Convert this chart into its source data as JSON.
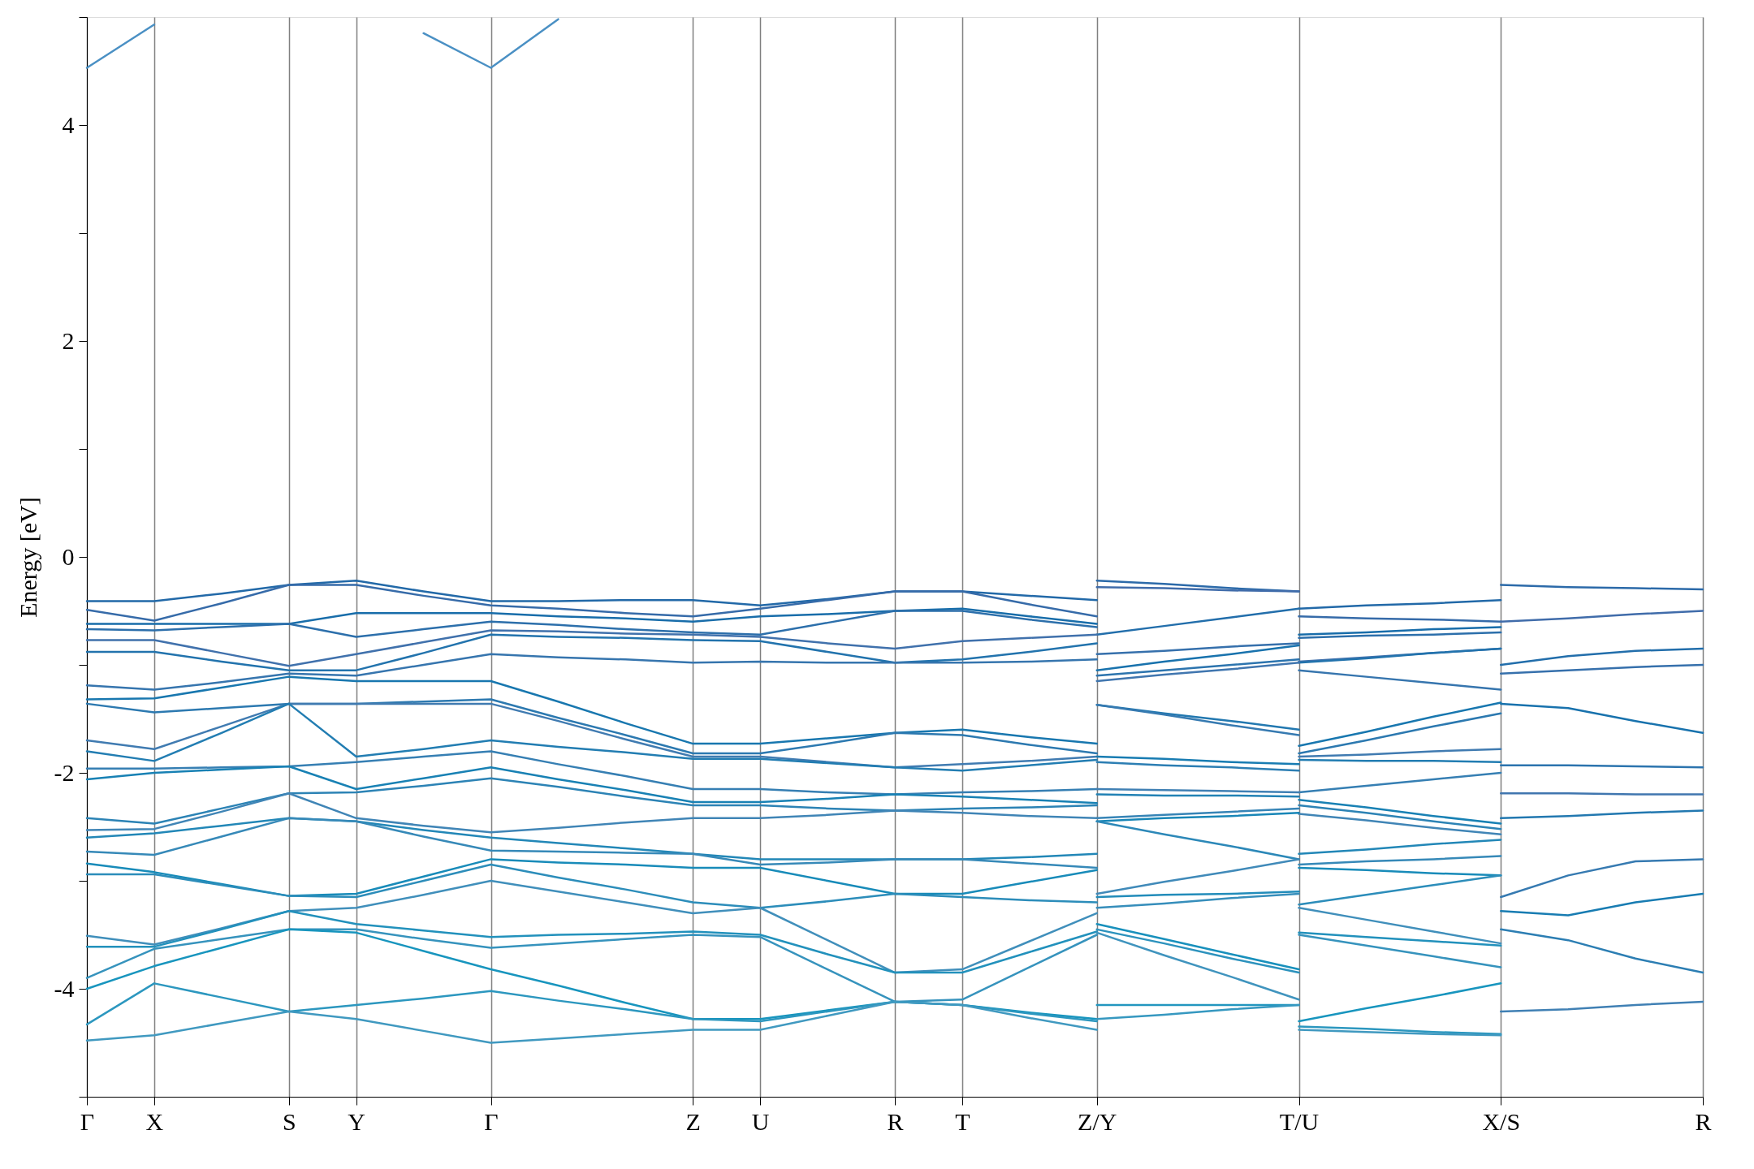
{
  "chart_data": {
    "type": "line",
    "ylabel": "Energy [eV]",
    "categories": [
      "Γ",
      "X",
      null,
      "S",
      "Y",
      null,
      "Γ",
      null,
      null,
      "Z",
      "U",
      null,
      "R",
      "T",
      null,
      "Z/Y",
      null,
      null,
      "T/U",
      null,
      null,
      "X/S",
      null,
      null,
      "R"
    ],
    "ylim": [
      -5,
      5
    ],
    "yticks": [
      {
        "value": -5,
        "label": null
      },
      -4,
      {
        "value": -3,
        "label": null
      },
      -2,
      {
        "value": -1,
        "label": null
      },
      0,
      {
        "value": 1,
        "label": null
      },
      2,
      {
        "value": 3,
        "label": null
      },
      4,
      {
        "value": 5,
        "label": null
      }
    ],
    "grid": "x",
    "legend": false,
    "line_style": "solid",
    "marker": "none",
    "series": [
      {
        "color": "#4a90c4",
        "values": [
          4.53,
          4.93,
          null,
          null,
          null,
          4.85,
          4.53,
          4.98,
          null,
          null,
          null,
          null,
          null,
          null,
          null,
          null,
          null,
          null,
          null,
          null,
          null,
          null,
          null,
          null,
          null
        ]
      },
      {
        "color": "#2269a8",
        "values": [
          -0.41,
          -0.41,
          -0.34,
          -0.26,
          -0.22,
          -0.32,
          -0.41,
          -0.41,
          -0.4,
          -0.4,
          -0.45,
          -0.39,
          -0.32,
          -0.32,
          -0.36,
          -0.4,
          null,
          null,
          -0.48,
          -0.45,
          -0.43,
          -0.4,
          null,
          null,
          null
        ]
      },
      {
        "color": "#2c6aa9",
        "values": [
          null,
          null,
          null,
          null,
          null,
          null,
          null,
          null,
          null,
          null,
          null,
          null,
          null,
          null,
          null,
          -0.22,
          -0.25,
          -0.29,
          -0.32,
          null,
          null,
          -0.26,
          -0.28,
          -0.29,
          -0.3
        ]
      },
      {
        "color": "#366ba9",
        "values": [
          -0.49,
          -0.59,
          -0.43,
          -0.26,
          -0.26,
          -0.36,
          -0.45,
          -0.48,
          -0.52,
          -0.55,
          -0.48,
          -0.4,
          -0.32,
          -0.32,
          -0.44,
          -0.55,
          null,
          null,
          -0.55,
          -0.57,
          -0.58,
          -0.6,
          null,
          null,
          null
        ]
      },
      {
        "color": "#406caa",
        "values": [
          null,
          null,
          null,
          null,
          null,
          null,
          null,
          null,
          null,
          null,
          null,
          null,
          null,
          null,
          null,
          -0.28,
          -0.29,
          -0.31,
          -0.32,
          null,
          null,
          -0.6,
          -0.57,
          -0.53,
          -0.5
        ]
      },
      {
        "color": "#186daa",
        "values": [
          -0.62,
          -0.62,
          -0.62,
          -0.62,
          -0.52,
          -0.52,
          -0.52,
          -0.55,
          -0.57,
          -0.6,
          -0.55,
          -0.53,
          -0.5,
          -0.48,
          -0.55,
          -0.62,
          null,
          null,
          -0.72,
          -0.7,
          -0.67,
          -0.65,
          null,
          null,
          null
        ]
      },
      {
        "color": "#226eab",
        "values": [
          null,
          null,
          null,
          null,
          null,
          null,
          null,
          null,
          null,
          null,
          null,
          null,
          null,
          null,
          null,
          -0.72,
          -0.64,
          -0.56,
          -0.48,
          null,
          null,
          -1.0,
          -0.92,
          -0.87,
          -0.85
        ]
      },
      {
        "color": "#2c6fab",
        "values": [
          -0.67,
          -0.68,
          -0.65,
          -0.62,
          -0.74,
          -0.67,
          -0.6,
          -0.63,
          -0.67,
          -0.7,
          -0.72,
          -0.61,
          -0.5,
          -0.5,
          -0.58,
          -0.65,
          null,
          null,
          -0.75,
          -0.73,
          -0.72,
          -0.7,
          null,
          null,
          null
        ]
      },
      {
        "color": "#3670ac",
        "values": [
          null,
          null,
          null,
          null,
          null,
          null,
          null,
          null,
          null,
          null,
          null,
          null,
          null,
          null,
          null,
          -0.9,
          -0.87,
          -0.83,
          -0.8,
          null,
          null,
          -1.08,
          -1.05,
          -1.02,
          -1.0
        ]
      },
      {
        "color": "#4071ac",
        "values": [
          -0.77,
          -0.77,
          -0.89,
          -1.01,
          -0.9,
          -0.79,
          -0.68,
          -0.69,
          -0.71,
          -0.72,
          -0.74,
          -0.8,
          -0.85,
          -0.78,
          -0.75,
          -0.72,
          null,
          null,
          -0.97,
          -0.93,
          -0.89,
          -0.85,
          null,
          null,
          null
        ]
      },
      {
        "color": "#1872ad",
        "values": [
          null,
          null,
          null,
          null,
          null,
          null,
          null,
          null,
          null,
          null,
          null,
          null,
          null,
          null,
          null,
          -1.05,
          -0.97,
          -0.9,
          -0.82,
          null,
          null,
          -1.36,
          -1.4,
          -1.52,
          -1.63
        ]
      },
      {
        "color": "#2273ad",
        "values": [
          -0.88,
          -0.88,
          -0.97,
          -1.05,
          -1.05,
          -0.89,
          -0.72,
          -0.74,
          -0.75,
          -0.77,
          -0.78,
          -0.88,
          -0.98,
          -0.95,
          -0.88,
          -0.8,
          null,
          null,
          -0.98,
          -0.94,
          -0.89,
          -0.85,
          null,
          null,
          null
        ]
      },
      {
        "color": "#2c74ae",
        "values": [
          null,
          null,
          null,
          null,
          null,
          null,
          null,
          null,
          null,
          null,
          null,
          null,
          null,
          null,
          null,
          -1.1,
          -1.05,
          -1.0,
          -0.95,
          null,
          null,
          -1.93,
          -1.93,
          -1.94,
          -1.95
        ]
      },
      {
        "color": "#3675ae",
        "values": [
          -1.19,
          -1.23,
          -1.16,
          -1.08,
          -1.1,
          -1.0,
          -0.9,
          -0.93,
          -0.95,
          -0.98,
          -0.97,
          -0.98,
          -0.98,
          -0.98,
          -0.97,
          -0.95,
          null,
          null,
          -1.05,
          -1.11,
          -1.17,
          -1.23,
          null,
          null,
          null
        ]
      },
      {
        "color": "#4076af",
        "values": [
          null,
          null,
          null,
          null,
          null,
          null,
          null,
          null,
          null,
          null,
          null,
          null,
          null,
          null,
          null,
          -1.15,
          -1.09,
          -1.04,
          -0.98,
          null,
          null,
          -2.19,
          -2.19,
          -2.2,
          -2.2
        ]
      },
      {
        "color": "#1877af",
        "values": [
          -1.32,
          -1.31,
          -1.21,
          -1.11,
          -1.15,
          -1.15,
          -1.15,
          -1.34,
          -1.54,
          -1.73,
          -1.73,
          -1.68,
          -1.63,
          -1.6,
          -1.67,
          -1.73,
          null,
          null,
          -1.75,
          -1.62,
          -1.48,
          -1.35,
          null,
          null,
          null
        ]
      },
      {
        "color": "#2278b0",
        "values": [
          null,
          null,
          null,
          null,
          null,
          null,
          null,
          null,
          null,
          null,
          null,
          null,
          null,
          null,
          null,
          -1.37,
          -1.45,
          -1.52,
          -1.6,
          null,
          null,
          -2.42,
          -2.4,
          -2.37,
          -2.35
        ]
      },
      {
        "color": "#2c79b0",
        "values": [
          -1.36,
          -1.44,
          -1.4,
          -1.36,
          -1.36,
          -1.34,
          -1.32,
          -1.49,
          -1.65,
          -1.82,
          -1.82,
          -1.73,
          -1.63,
          -1.65,
          -1.74,
          -1.82,
          null,
          null,
          -1.82,
          -1.7,
          -1.57,
          -1.45,
          null,
          null,
          null
        ]
      },
      {
        "color": "#367ab1",
        "values": [
          null,
          null,
          null,
          null,
          null,
          null,
          null,
          null,
          null,
          null,
          null,
          null,
          null,
          null,
          null,
          -1.37,
          -1.46,
          -1.56,
          -1.65,
          null,
          null,
          -3.15,
          -2.95,
          -2.82,
          -2.8
        ]
      },
      {
        "color": "#407bb1",
        "values": [
          -1.7,
          -1.78,
          -1.57,
          -1.36,
          -1.36,
          -1.36,
          -1.36,
          -1.52,
          -1.69,
          -1.85,
          -1.85,
          -1.9,
          -1.95,
          -1.92,
          -1.89,
          -1.85,
          null,
          null,
          -1.85,
          -1.83,
          -1.8,
          -1.78,
          null,
          null,
          null
        ]
      },
      {
        "color": "#187cb2",
        "values": [
          null,
          null,
          null,
          null,
          null,
          null,
          null,
          null,
          null,
          null,
          null,
          null,
          null,
          null,
          null,
          -1.85,
          -1.87,
          -1.9,
          -1.92,
          null,
          null,
          -3.28,
          -3.32,
          -3.2,
          -3.12
        ]
      },
      {
        "color": "#227db2",
        "values": [
          -1.8,
          -1.89,
          -1.63,
          -1.36,
          -1.85,
          -1.78,
          -1.7,
          -1.76,
          -1.81,
          -1.87,
          -1.87,
          -1.91,
          -1.95,
          -1.98,
          -1.93,
          -1.88,
          null,
          null,
          -1.88,
          -1.89,
          -1.89,
          -1.9,
          null,
          null,
          null
        ]
      },
      {
        "color": "#2c7eb3",
        "values": [
          null,
          null,
          null,
          null,
          null,
          null,
          null,
          null,
          null,
          null,
          null,
          null,
          null,
          null,
          null,
          -1.9,
          -1.93,
          -1.95,
          -1.98,
          null,
          null,
          -3.45,
          -3.55,
          -3.72,
          -3.85
        ]
      },
      {
        "color": "#367fb3",
        "values": [
          -1.96,
          -1.96,
          -1.95,
          -1.94,
          -1.9,
          -1.85,
          -1.8,
          -1.92,
          -2.03,
          -2.15,
          -2.15,
          -2.18,
          -2.2,
          -2.18,
          -2.17,
          -2.15,
          null,
          null,
          -2.18,
          -2.12,
          -2.06,
          -2.0,
          null,
          null,
          null
        ]
      },
      {
        "color": "#4080b4",
        "values": [
          null,
          null,
          null,
          null,
          null,
          null,
          null,
          null,
          null,
          null,
          null,
          null,
          null,
          null,
          null,
          -2.15,
          -2.16,
          -2.17,
          -2.18,
          null,
          null,
          -4.21,
          -4.19,
          -4.15,
          -4.12
        ]
      },
      {
        "color": "#1881b4",
        "values": [
          -2.06,
          -2.0,
          -1.97,
          -1.94,
          -2.15,
          -2.05,
          -1.95,
          -2.06,
          -2.16,
          -2.27,
          -2.27,
          -2.24,
          -2.2,
          -2.22,
          -2.25,
          -2.28,
          null,
          null,
          -2.25,
          -2.32,
          -2.4,
          -2.47,
          null,
          null,
          null
        ]
      },
      {
        "color": "#2282b5",
        "values": [
          null,
          null,
          null,
          null,
          null,
          null,
          null,
          null,
          null,
          null,
          null,
          null,
          null,
          null,
          null,
          -2.2,
          -2.21,
          -2.21,
          -2.22,
          null,
          null,
          null,
          null,
          null,
          null
        ]
      },
      {
        "color": "#2c83b5",
        "values": [
          -2.42,
          -2.47,
          -2.33,
          -2.19,
          -2.18,
          -2.12,
          -2.05,
          -2.13,
          -2.22,
          -2.3,
          -2.3,
          -2.33,
          -2.35,
          -2.33,
          -2.32,
          -2.3,
          null,
          null,
          -2.3,
          -2.37,
          -2.45,
          -2.52,
          null,
          null,
          null
        ]
      },
      {
        "color": "#3684b6",
        "values": [
          null,
          null,
          null,
          null,
          null,
          null,
          null,
          null,
          null,
          null,
          null,
          null,
          null,
          null,
          null,
          -2.42,
          -2.39,
          -2.36,
          -2.33,
          null,
          null,
          null,
          null,
          null,
          null
        ]
      },
      {
        "color": "#4085b6",
        "values": [
          -2.53,
          -2.52,
          -2.36,
          -2.19,
          -2.42,
          -2.49,
          -2.55,
          -2.51,
          -2.46,
          -2.42,
          -2.42,
          -2.39,
          -2.35,
          -2.37,
          -2.4,
          -2.42,
          null,
          null,
          -2.38,
          -2.44,
          -2.51,
          -2.57,
          null,
          null,
          null
        ]
      },
      {
        "color": "#1886b7",
        "values": [
          null,
          null,
          null,
          null,
          null,
          null,
          null,
          null,
          null,
          null,
          null,
          null,
          null,
          null,
          null,
          -2.45,
          -2.42,
          -2.4,
          -2.37,
          null,
          null,
          null,
          null,
          null,
          null
        ]
      },
      {
        "color": "#2287b7",
        "values": [
          -2.6,
          -2.56,
          -2.49,
          -2.42,
          -2.45,
          -2.53,
          -2.6,
          -2.65,
          -2.7,
          -2.75,
          -2.8,
          -2.8,
          -2.8,
          -2.8,
          -2.78,
          -2.75,
          null,
          null,
          -2.75,
          -2.71,
          -2.66,
          -2.62,
          null,
          null,
          null
        ]
      },
      {
        "color": "#2c88b8",
        "values": [
          null,
          null,
          null,
          null,
          null,
          null,
          null,
          null,
          null,
          null,
          null,
          null,
          null,
          null,
          null,
          -2.45,
          -2.57,
          -2.68,
          -2.8,
          null,
          null,
          null,
          null,
          null,
          null
        ]
      },
      {
        "color": "#3689b8",
        "values": [
          -2.73,
          -2.76,
          -2.59,
          -2.42,
          -2.45,
          -2.59,
          -2.72,
          -2.73,
          -2.74,
          -2.75,
          -2.85,
          -2.83,
          -2.8,
          -2.8,
          -2.84,
          -2.88,
          null,
          null,
          -2.85,
          -2.82,
          -2.8,
          -2.77,
          null,
          null,
          null
        ]
      },
      {
        "color": "#408ab9",
        "values": [
          null,
          null,
          null,
          null,
          null,
          null,
          null,
          null,
          null,
          null,
          null,
          null,
          null,
          null,
          null,
          -3.12,
          -3.01,
          -2.91,
          -2.8,
          null,
          null,
          null,
          null,
          null,
          null
        ]
      },
      {
        "color": "#188bb9",
        "values": [
          -2.84,
          -2.92,
          -3.03,
          -3.14,
          -3.12,
          -2.96,
          -2.8,
          -2.83,
          -2.85,
          -2.88,
          -2.88,
          -3.0,
          -3.12,
          -3.12,
          -3.01,
          -2.9,
          null,
          null,
          -2.88,
          -2.9,
          -2.93,
          -2.95,
          null,
          null,
          null
        ]
      },
      {
        "color": "#228cba",
        "values": [
          null,
          null,
          null,
          null,
          null,
          null,
          null,
          null,
          null,
          null,
          null,
          null,
          null,
          null,
          null,
          -3.15,
          -3.13,
          -3.12,
          -3.1,
          null,
          null,
          null,
          null,
          null,
          null
        ]
      },
      {
        "color": "#2c8dba",
        "values": [
          -2.94,
          -2.94,
          -3.04,
          -3.14,
          -3.15,
          -3.0,
          -2.85,
          -2.97,
          -3.08,
          -3.2,
          -3.25,
          -3.19,
          -3.12,
          -3.15,
          -3.18,
          -3.2,
          null,
          null,
          -3.22,
          -3.13,
          -3.04,
          -2.95,
          null,
          null,
          null
        ]
      },
      {
        "color": "#368ebb",
        "values": [
          null,
          null,
          null,
          null,
          null,
          null,
          null,
          null,
          null,
          null,
          null,
          null,
          null,
          null,
          null,
          -3.25,
          -3.21,
          -3.16,
          -3.12,
          null,
          null,
          null,
          null,
          null,
          null
        ]
      },
      {
        "color": "#408fbb",
        "values": [
          -3.51,
          -3.59,
          -3.44,
          -3.28,
          -3.25,
          -3.13,
          -3.0,
          -3.1,
          -3.2,
          -3.3,
          -3.25,
          -3.55,
          -3.85,
          -3.82,
          -3.56,
          -3.3,
          null,
          null,
          -3.25,
          -3.36,
          -3.47,
          -3.58,
          null,
          null,
          null
        ]
      },
      {
        "color": "#1890bc",
        "values": [
          null,
          null,
          null,
          null,
          null,
          null,
          null,
          null,
          null,
          null,
          null,
          null,
          null,
          null,
          null,
          -3.4,
          -3.54,
          -3.68,
          -3.82,
          null,
          null,
          null,
          null,
          null,
          null
        ]
      },
      {
        "color": "#2291bc",
        "values": [
          -3.61,
          -3.61,
          -3.45,
          -3.28,
          -3.4,
          -3.46,
          -3.52,
          -3.5,
          -3.49,
          -3.47,
          -3.5,
          -3.68,
          -3.85,
          -3.85,
          -3.66,
          -3.47,
          null,
          null,
          -3.48,
          -3.52,
          -3.56,
          -3.6,
          null,
          null,
          null
        ]
      },
      {
        "color": "#2c92bd",
        "values": [
          null,
          null,
          null,
          null,
          null,
          null,
          null,
          null,
          null,
          null,
          null,
          null,
          null,
          null,
          null,
          -3.45,
          -3.58,
          -3.72,
          -3.85,
          null,
          null,
          null,
          null,
          null,
          null
        ]
      },
      {
        "color": "#3693bd",
        "values": [
          -3.9,
          -3.63,
          -3.54,
          -3.45,
          -3.45,
          -3.54,
          -3.62,
          -3.58,
          -3.54,
          -3.5,
          -3.52,
          -3.82,
          -4.12,
          -4.1,
          -3.8,
          -3.5,
          null,
          null,
          -3.5,
          -3.6,
          -3.7,
          -3.8,
          null,
          null,
          null
        ]
      },
      {
        "color": "#4094be",
        "values": [
          null,
          null,
          null,
          null,
          null,
          null,
          null,
          null,
          null,
          null,
          null,
          null,
          null,
          null,
          null,
          -3.48,
          -3.69,
          -3.89,
          -4.1,
          null,
          null,
          null,
          null,
          null,
          null
        ]
      },
      {
        "color": "#1895be",
        "values": [
          -4.0,
          -3.79,
          -3.62,
          -3.45,
          -3.48,
          -3.65,
          -3.82,
          -3.97,
          -4.13,
          -4.28,
          -4.28,
          -4.2,
          -4.12,
          -4.15,
          -4.22,
          -4.28,
          null,
          null,
          -4.3,
          -4.18,
          -4.07,
          -3.95,
          null,
          null,
          null
        ]
      },
      {
        "color": "#2296bf",
        "values": [
          null,
          null,
          null,
          null,
          null,
          null,
          null,
          null,
          null,
          null,
          null,
          null,
          null,
          null,
          null,
          -4.15,
          -4.15,
          -4.15,
          -4.15,
          null,
          null,
          null,
          null,
          null,
          null
        ]
      },
      {
        "color": "#2c97bf",
        "values": [
          -4.33,
          -3.95,
          -4.08,
          -4.21,
          -4.15,
          -4.09,
          -4.02,
          -4.11,
          -4.19,
          -4.28,
          -4.3,
          -4.21,
          -4.12,
          -4.15,
          -4.23,
          -4.3,
          null,
          null,
          -4.35,
          -4.37,
          -4.4,
          -4.42,
          null,
          null,
          null
        ]
      },
      {
        "color": "#3698c0",
        "values": [
          null,
          null,
          null,
          null,
          null,
          null,
          null,
          null,
          null,
          null,
          null,
          null,
          null,
          null,
          null,
          -4.28,
          -4.24,
          -4.19,
          -4.15,
          null,
          null,
          null,
          null,
          null,
          null
        ]
      },
      {
        "color": "#4099c0",
        "values": [
          -4.48,
          -4.43,
          -4.32,
          -4.21,
          -4.28,
          -4.39,
          -4.5,
          -4.46,
          -4.42,
          -4.38,
          -4.38,
          -4.25,
          -4.12,
          -4.15,
          -4.27,
          -4.38,
          null,
          null,
          -4.38,
          -4.4,
          -4.42,
          -4.43,
          null,
          null,
          null
        ]
      }
    ]
  }
}
